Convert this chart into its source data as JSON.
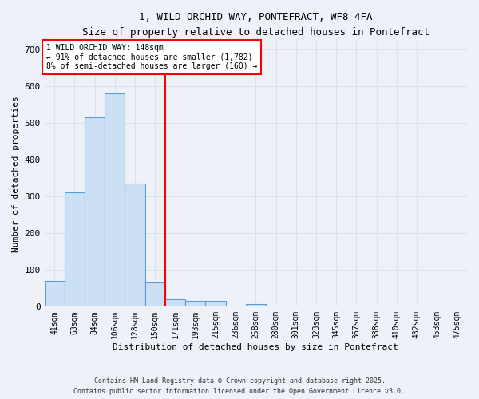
{
  "title_line1": "1, WILD ORCHID WAY, PONTEFRACT, WF8 4FA",
  "title_line2": "Size of property relative to detached houses in Pontefract",
  "xlabel": "Distribution of detached houses by size in Pontefract",
  "ylabel": "Number of detached properties",
  "bar_labels": [
    "41sqm",
    "63sqm",
    "84sqm",
    "106sqm",
    "128sqm",
    "150sqm",
    "171sqm",
    "193sqm",
    "215sqm",
    "236sqm",
    "258sqm",
    "280sqm",
    "301sqm",
    "323sqm",
    "345sqm",
    "367sqm",
    "388sqm",
    "410sqm",
    "432sqm",
    "453sqm",
    "475sqm"
  ],
  "bar_values": [
    70,
    310,
    515,
    580,
    335,
    65,
    20,
    15,
    15,
    0,
    8,
    0,
    0,
    0,
    0,
    0,
    0,
    0,
    0,
    0,
    0
  ],
  "bar_color": "#cce0f5",
  "bar_edge_color": "#5b9bd5",
  "ref_line_color": "red",
  "annotation_text": "1 WILD ORCHID WAY: 148sqm\n← 91% of detached houses are smaller (1,782)\n8% of semi-detached houses are larger (160) →",
  "annotation_box_color": "white",
  "annotation_box_edge": "red",
  "ylim": [
    0,
    720
  ],
  "yticks": [
    0,
    100,
    200,
    300,
    400,
    500,
    600,
    700
  ],
  "footer_line1": "Contains HM Land Registry data © Crown copyright and database right 2025.",
  "footer_line2": "Contains public sector information licensed under the Open Government Licence v3.0.",
  "bg_color": "#eef2f8",
  "grid_color": "#d8e4f0"
}
